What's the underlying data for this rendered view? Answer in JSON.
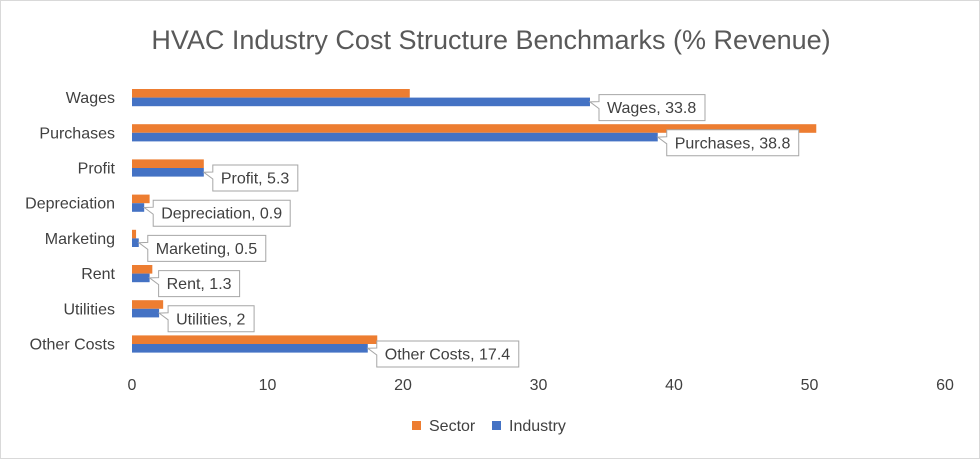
{
  "chart_data": {
    "type": "bar",
    "orientation": "horizontal",
    "title": "HVAC Industry Cost Structure Benchmarks (% Revenue)",
    "categories": [
      "Wages",
      "Purchases",
      "Profit",
      "Depreciation",
      "Marketing",
      "Rent",
      "Utilities",
      "Other Costs"
    ],
    "series": [
      {
        "name": "Sector",
        "color": "#ED7D31",
        "values": [
          20.5,
          50.5,
          5.3,
          1.3,
          0.3,
          1.5,
          2.3,
          18.1
        ]
      },
      {
        "name": "Industry",
        "color": "#4472C4",
        "values": [
          33.8,
          38.8,
          5.3,
          0.9,
          0.5,
          1.3,
          2.0,
          17.4
        ]
      }
    ],
    "data_labels": [
      "Wages, 33.8",
      "Purchases, 38.8",
      "Profit, 5.3",
      "Depreciation, 0.9",
      "Marketing, 0.5",
      "Rent, 1.3",
      "Utilities, 2",
      "Other Costs, 17.4"
    ],
    "xlim": [
      0,
      60
    ],
    "xticks": [
      "0",
      "10",
      "20",
      "30",
      "40",
      "50",
      "60"
    ],
    "xlabel": "",
    "ylabel": "",
    "gridlines": false,
    "legend_position": "bottom"
  }
}
